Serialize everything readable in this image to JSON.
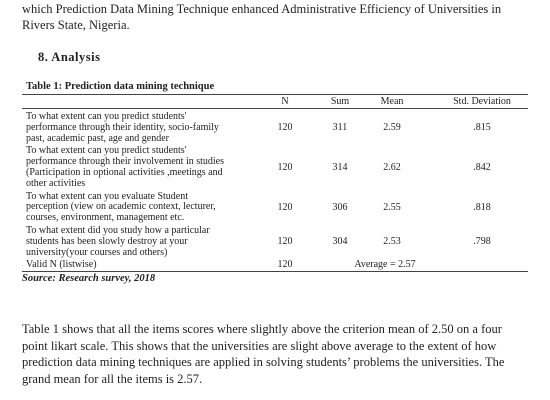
{
  "intro_lines": [
    "which Prediction Data Mining Technique enhanced Administrative Efficiency of Universities in",
    "Rivers State, Nigeria."
  ],
  "section_heading": "8.  Analysis",
  "table": {
    "caption": "Table 1: Prediction data mining technique",
    "header": [
      "N",
      "Sum",
      "Mean",
      "Std. Deviation"
    ],
    "rows": [
      {
        "item_lines": [
          "To what extent can you predict students'",
          "performance through their identity, socio-family",
          "past, academic past, age and gender"
        ],
        "cells": [
          "120",
          "311",
          "2.59",
          ".815"
        ]
      },
      {
        "item_lines": [
          "To what extent can you predict students'",
          "performance through their involvement in studies",
          "(Participation in optional activities ,meetings and",
          "other activities"
        ],
        "cells": [
          "120",
          "314",
          "2.62",
          ".842"
        ]
      },
      {
        "item_lines": [
          "To what extent can you evaluate Student",
          "perception (view on academic context, lecturer,",
          "courses, environment, management etc."
        ],
        "cells": [
          "120",
          "306",
          "2.55",
          ".818"
        ]
      },
      {
        "item_lines": [
          "To what extent did you study how a particular",
          "students has been slowly destroy at your",
          "university(your courses and others)"
        ],
        "cells": [
          "120",
          "304",
          "2.53",
          ".798"
        ]
      }
    ],
    "valid_row": {
      "label": "Valid N (listwise)",
      "n": "120",
      "average": "Average = 2.57"
    },
    "source": "Source: Research survey, 2018"
  },
  "paragraph_lines": [
    "Table 1 shows that all the items scores where slightly above the criterion mean of 2.50 on a four",
    "point likart scale.  This shows that the universities are slight above average to the extent of how",
    "prediction data mining techniques are applied in solving students’ problems the universities. The",
    "grand mean for all the items is 2.57."
  ]
}
